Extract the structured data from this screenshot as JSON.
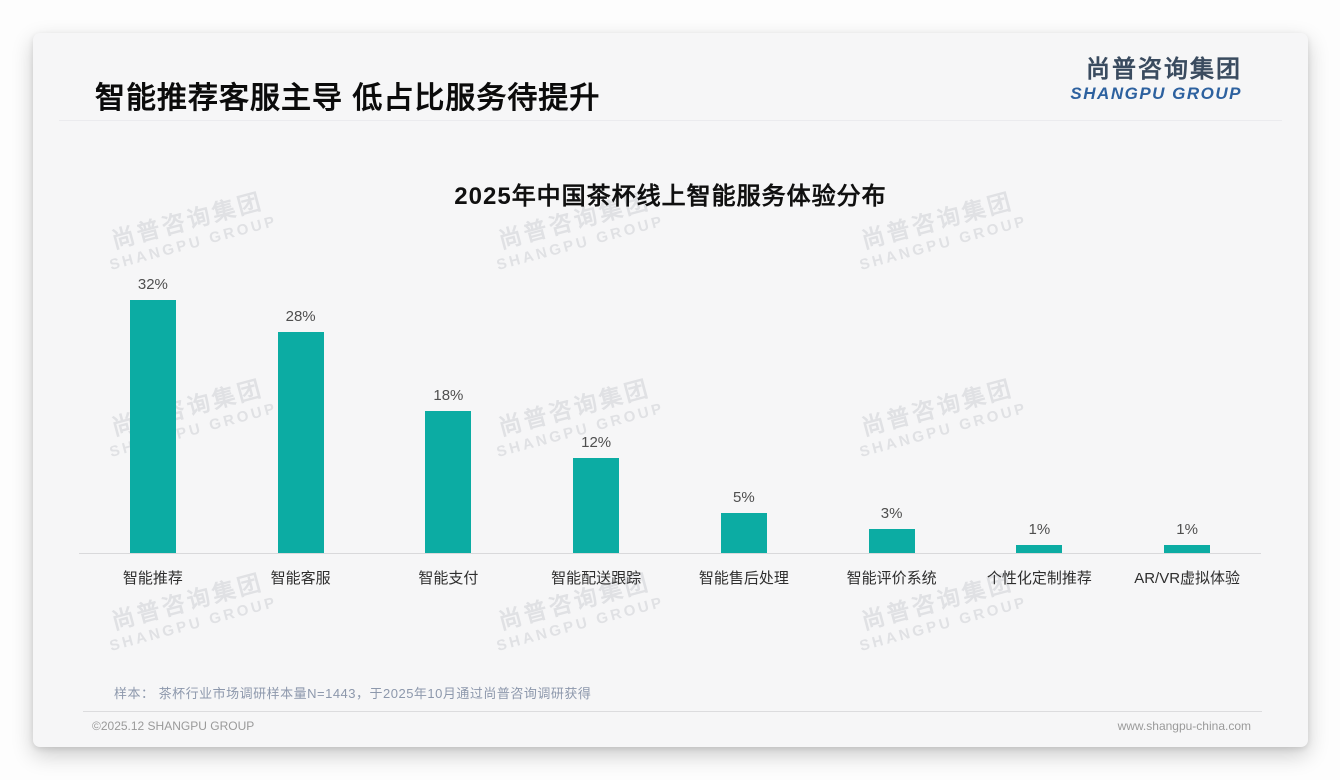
{
  "header": {
    "title": "智能推荐客服主导 低占比服务待提升"
  },
  "logo": {
    "cn": "尚普咨询集团",
    "en": "SHANGPU GROUP"
  },
  "watermark": {
    "line1": "尚普咨询集团",
    "line2": "SHANGPU GROUP"
  },
  "chart_data": {
    "type": "bar",
    "title": "2025年中国茶杯线上智能服务体验分布",
    "categories": [
      "智能推荐",
      "智能客服",
      "智能支付",
      "智能配送跟踪",
      "智能售后处理",
      "智能评价系统",
      "个性化定制推荐",
      "AR/VR虚拟体验"
    ],
    "values": [
      32,
      28,
      18,
      12,
      5,
      3,
      1,
      1
    ],
    "value_suffix": "%",
    "xlabel": "",
    "ylabel": "",
    "ylim": [
      0,
      34
    ],
    "grid": false,
    "legend": "none",
    "bar_color": "#0caca3",
    "value_labels_shown": true
  },
  "note": {
    "text": "样本： 茶杯行业市场调研样本量N=1443，于2025年10月通过尚普咨询调研获得"
  },
  "footer": {
    "copyright": "©2025.12 SHANGPU GROUP",
    "website": "www.shangpu-china.com"
  }
}
